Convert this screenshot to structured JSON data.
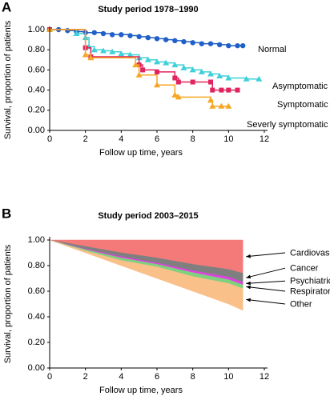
{
  "chart_data": [
    {
      "type": "step",
      "panel": "A",
      "title": "Study period 1978–1990",
      "ylabel": "Survival, proportion of patients",
      "xlabel": "Follow up time, years",
      "xlim": [
        0,
        12
      ],
      "xticks": [
        0,
        2,
        4,
        6,
        8,
        10,
        12
      ],
      "ylim": [
        0,
        1
      ],
      "yticks": [
        {
          "value": 0,
          "label": "0.00"
        },
        {
          "value": 0.2,
          "label": "0.20"
        },
        {
          "value": 0.4,
          "label": "0.40"
        },
        {
          "value": 0.6,
          "label": "0.60"
        },
        {
          "value": 0.8,
          "label": "0.80"
        },
        {
          "value": 1,
          "label": "1.00"
        }
      ],
      "series": [
        {
          "name": "Normal",
          "color": "#1f5fc8",
          "marker": "circle",
          "x": [
            0,
            0.5,
            1,
            1.5,
            2,
            2.5,
            3,
            3.5,
            4,
            4.5,
            5,
            5.5,
            6,
            6.5,
            7,
            7.5,
            8,
            8.5,
            9,
            9.5,
            10,
            10.5,
            10.8
          ],
          "values": [
            1,
            1,
            0.99,
            0.98,
            0.97,
            0.97,
            0.96,
            0.95,
            0.95,
            0.94,
            0.93,
            0.92,
            0.91,
            0.9,
            0.89,
            0.88,
            0.87,
            0.86,
            0.86,
            0.85,
            0.84,
            0.84,
            0.84
          ]
        },
        {
          "name": "Asymptomatic",
          "color": "#3fd0d8",
          "marker": "triangle",
          "x": [
            0,
            1.5,
            2,
            2.2,
            2.5,
            3,
            3.5,
            4,
            4.5,
            5,
            5.5,
            6,
            6.5,
            7,
            7.5,
            8,
            8.5,
            9,
            9.5,
            10,
            11,
            11.7
          ],
          "values": [
            1,
            0.96,
            0.92,
            0.83,
            0.8,
            0.79,
            0.78,
            0.76,
            0.75,
            0.72,
            0.7,
            0.68,
            0.67,
            0.65,
            0.62,
            0.6,
            0.58,
            0.56,
            0.54,
            0.52,
            0.51,
            0.51
          ]
        },
        {
          "name": "Symptomatic",
          "color": "#e0245e",
          "marker": "square",
          "x": [
            0,
            2,
            2.3,
            5,
            5.2,
            6,
            7,
            7.2,
            8,
            9,
            9.1,
            9.6,
            10,
            10.5
          ],
          "values": [
            1,
            0.82,
            0.73,
            0.65,
            0.6,
            0.58,
            0.52,
            0.48,
            0.48,
            0.48,
            0.4,
            0.4,
            0.4,
            0.4
          ]
        },
        {
          "name": "Severly symptomatic",
          "color": "#f5a623",
          "marker": "triangle",
          "x": [
            0,
            2,
            2.3,
            4.8,
            5,
            6,
            7,
            7.2,
            9,
            9.1,
            9.6,
            10
          ],
          "values": [
            1,
            0.75,
            0.72,
            0.65,
            0.55,
            0.45,
            0.35,
            0.33,
            0.3,
            0.24,
            0.24,
            0.24
          ]
        }
      ]
    },
    {
      "type": "stacked-area-down",
      "panel": "B",
      "title": "Study period 2003–2015",
      "ylabel": "Survival, proportion of patients",
      "xlabel": "Follow up time, years",
      "xlim": [
        0,
        12
      ],
      "xticks": [
        0,
        2,
        4,
        6,
        8,
        10,
        12
      ],
      "ylim": [
        0,
        1
      ],
      "yticks": [
        {
          "value": 0,
          "label": "0.00"
        },
        {
          "value": 0.2,
          "label": "0.20"
        },
        {
          "value": 0.4,
          "label": "0.40"
        },
        {
          "value": 0.6,
          "label": "0.60"
        },
        {
          "value": 0.8,
          "label": "0.80"
        },
        {
          "value": 1,
          "label": "1.00"
        }
      ],
      "x": [
        0,
        2,
        4,
        6,
        8,
        10,
        10.8
      ],
      "series": [
        {
          "name": "Cardiovascular",
          "color": "#f47a7a",
          "values": [
            0,
            0.05,
            0.1,
            0.14,
            0.19,
            0.23,
            0.26
          ]
        },
        {
          "name": "Cancer",
          "color": "#7f7f7f",
          "values": [
            0,
            0.02,
            0.03,
            0.04,
            0.05,
            0.06,
            0.07
          ]
        },
        {
          "name": "Psychiatric",
          "color": "#e040e0",
          "values": [
            0,
            0.005,
            0.01,
            0.01,
            0.015,
            0.02,
            0.02
          ]
        },
        {
          "name": "Respiratory",
          "color": "#7fd07f",
          "values": [
            0,
            0.01,
            0.02,
            0.02,
            0.03,
            0.03,
            0.03
          ]
        },
        {
          "name": "Other",
          "color": "#f9c08a",
          "values": [
            0,
            0.015,
            0.04,
            0.09,
            0.115,
            0.16,
            0.17
          ]
        }
      ]
    }
  ]
}
